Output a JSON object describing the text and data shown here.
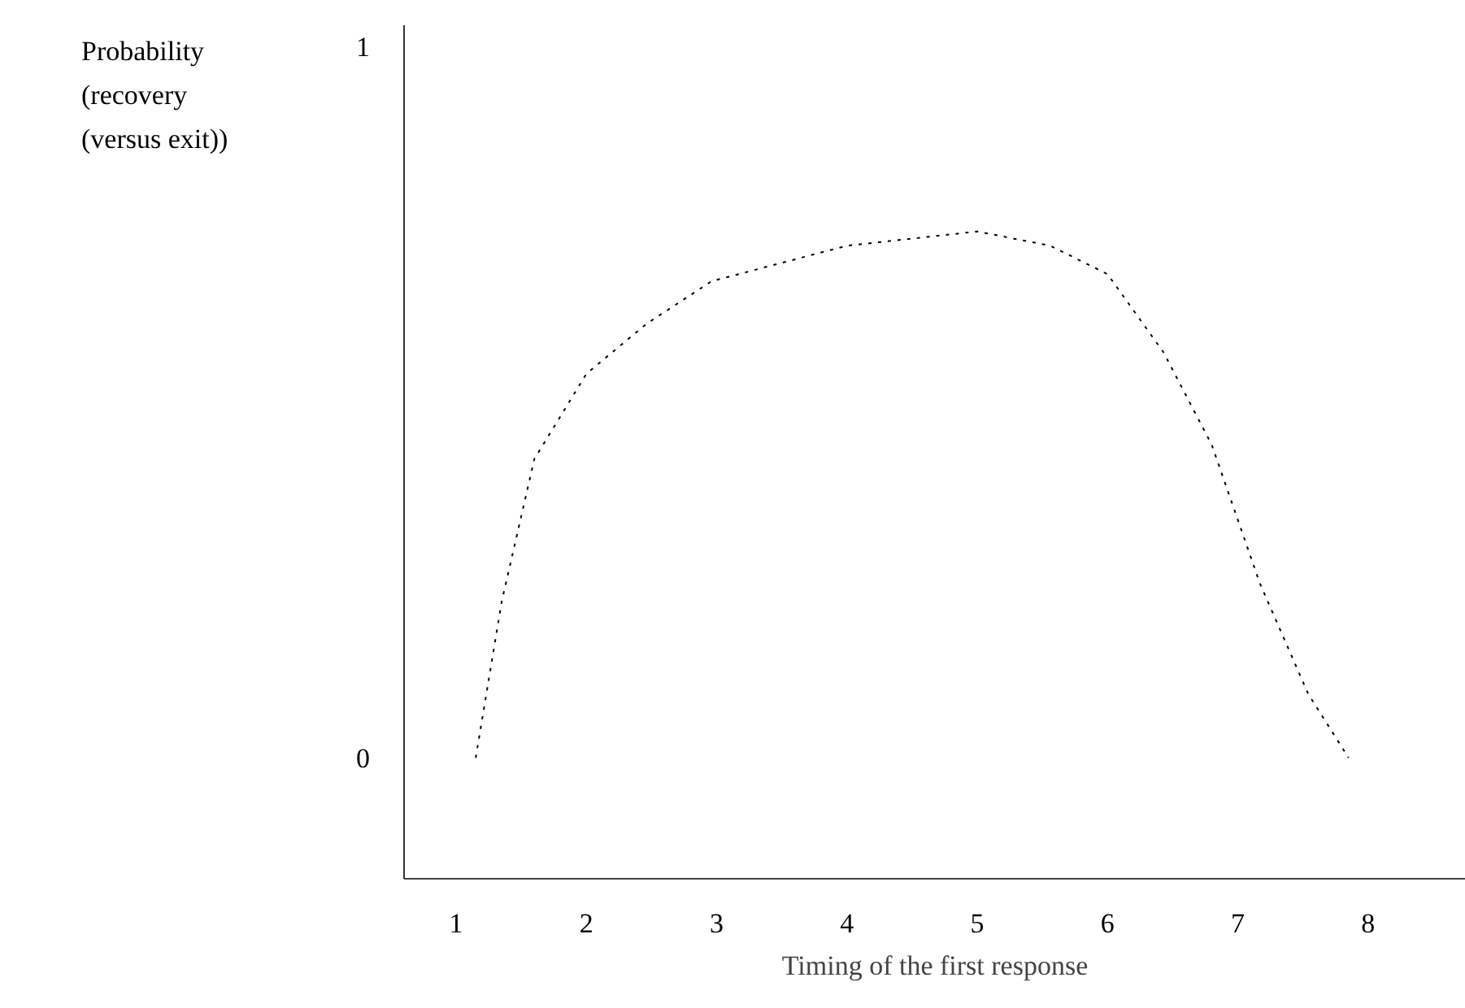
{
  "chart_data": {
    "type": "line",
    "xlabel": "Timing of the first response",
    "ylabel": "Probability\n(recovery\n(versus exit))",
    "x": [
      1.15,
      1.35,
      1.6,
      2,
      2.46,
      2.96,
      4,
      5,
      5.56,
      6,
      6.43,
      6.8,
      7.17,
      7.54,
      7.85
    ],
    "series": [
      {
        "color": "#000000",
        "values": [
          0,
          0.22,
          0.42,
          0.54,
          0.61,
          0.67,
          0.72,
          0.74,
          0.72,
          0.68,
          0.57,
          0.44,
          0.245,
          0.09,
          0
        ]
      }
    ],
    "line_style": "dotted",
    "xlim": [
      0.6,
      8.75
    ],
    "ylim": [
      -0.17,
      1.03
    ],
    "xticks": [
      1,
      2,
      3,
      4,
      5,
      6,
      7,
      8
    ],
    "yticks": [
      0,
      1
    ],
    "grid": false
  }
}
